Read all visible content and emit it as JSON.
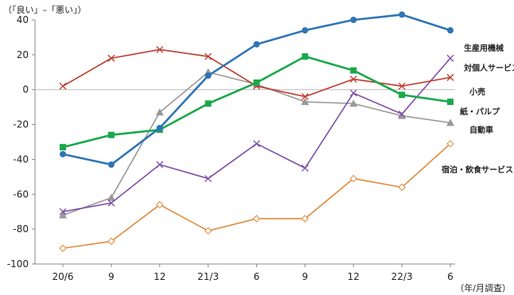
{
  "chart_data": {
    "type": "line",
    "ylabel": "（「良い」–「悪い」）",
    "xlabel": "（年/月調査）",
    "categories": [
      "20/6",
      "9",
      "12",
      "21/3",
      "6",
      "9",
      "12",
      "22/3",
      "6"
    ],
    "ylim": [
      -100,
      40
    ],
    "yticks": [
      -100,
      -80,
      -60,
      -40,
      -20,
      0,
      20,
      40
    ],
    "grid": false,
    "legend": "end-labels",
    "series": [
      {
        "name": "生産用機械",
        "color": "#2e75b6",
        "marker": "circle",
        "values": [
          -37,
          -43,
          -22,
          8,
          26,
          34,
          40,
          43,
          34
        ]
      },
      {
        "name": "対個人サービス",
        "color": "#7f4fa8",
        "marker": "x",
        "values": [
          -70,
          -65,
          -43,
          -51,
          -31,
          -45,
          -2,
          -14,
          18
        ]
      },
      {
        "name": "小売",
        "color": "#c0392b",
        "marker": "x",
        "values": [
          2,
          18,
          23,
          19,
          2,
          -4,
          6,
          2,
          7
        ]
      },
      {
        "name": "紙・パルプ",
        "color": "#1aa84a",
        "marker": "square",
        "values": [
          -33,
          -26,
          -23,
          -8,
          4,
          19,
          11,
          -3,
          -7
        ]
      },
      {
        "name": "自動車",
        "color": "#999999",
        "marker": "triangle",
        "values": [
          -72,
          -62,
          -13,
          10,
          3,
          -7,
          -8,
          -15,
          -19
        ]
      },
      {
        "name": "宿泊・飲食サービス",
        "color": "#e08a3c",
        "marker": "diamond",
        "values": [
          -91,
          -87,
          -66,
          -81,
          -74,
          -74,
          -51,
          -56,
          -31
        ]
      }
    ]
  }
}
